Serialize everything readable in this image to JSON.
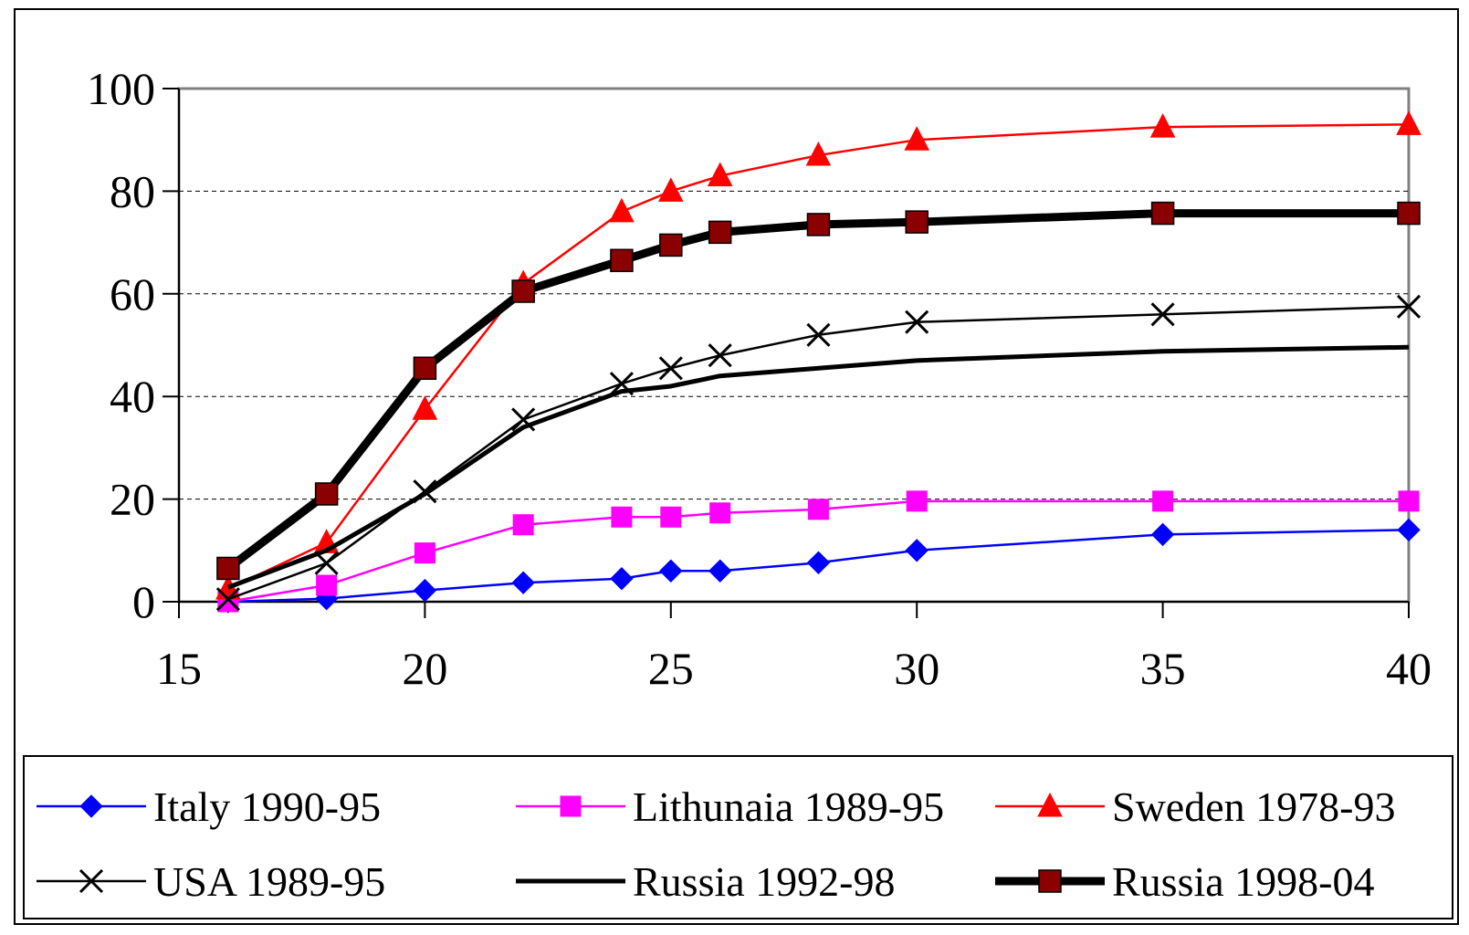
{
  "chart_data": {
    "type": "line",
    "title": "",
    "xlabel": "",
    "ylabel": "",
    "xlim": [
      15,
      40
    ],
    "ylim": [
      0,
      100
    ],
    "x_ticks": [
      15,
      20,
      25,
      30,
      35,
      40
    ],
    "y_ticks": [
      0,
      20,
      40,
      60,
      80,
      100
    ],
    "grid": "horizontal dashed",
    "legend_position": "bottom",
    "series": [
      {
        "name": "Italy 1990-95",
        "color": "#0000ff",
        "marker": "diamond",
        "line_weight": "thin",
        "x": [
          16,
          18,
          20,
          22,
          24,
          25,
          26,
          28,
          30,
          35,
          40
        ],
        "y": [
          0,
          0.6,
          2.2,
          3.7,
          4.5,
          6,
          6,
          7.6,
          10,
          13.1,
          14
        ]
      },
      {
        "name": "Lithunaia 1989-95",
        "color": "#ff00ff",
        "marker": "square",
        "line_weight": "thin",
        "x": [
          16,
          18,
          20,
          22,
          24,
          25,
          26,
          28,
          30,
          35,
          40
        ],
        "y": [
          0,
          3.2,
          9.5,
          15,
          16.5,
          16.5,
          17.3,
          18,
          19.6,
          19.6,
          19.6
        ]
      },
      {
        "name": "Sweden 1978-93",
        "color": "#ff0000",
        "marker": "triangle",
        "line_weight": "thin",
        "x": [
          16,
          18,
          20,
          22,
          24,
          25,
          26,
          28,
          30,
          35,
          40
        ],
        "y": [
          2.5,
          11.5,
          37.5,
          62,
          76,
          80,
          83,
          87,
          90,
          92.5,
          93
        ]
      },
      {
        "name": "USA 1989-95",
        "color": "#000000",
        "marker": "x",
        "line_weight": "thin",
        "x": [
          16,
          18,
          20,
          22,
          24,
          25,
          26,
          28,
          30,
          35,
          40
        ],
        "y": [
          0.5,
          7.5,
          21.5,
          35.5,
          42.5,
          45.5,
          48,
          52,
          54.5,
          56,
          57.5
        ]
      },
      {
        "name": "Russia 1992-98",
        "color": "#000000",
        "marker": "none",
        "line_weight": "medium",
        "x": [
          16,
          18,
          20,
          22,
          24,
          25,
          26,
          28,
          30,
          35,
          40
        ],
        "y": [
          2.8,
          10,
          21,
          34,
          41,
          42,
          44,
          45.5,
          47,
          48.8,
          49.6
        ]
      },
      {
        "name": "Russia 1998-04",
        "color": "#000000",
        "marker": "square-darkred",
        "marker_color": "#8b0000",
        "line_weight": "thick",
        "x": [
          16,
          18,
          20,
          22,
          24,
          25,
          26,
          28,
          30,
          35,
          40
        ],
        "y": [
          6.5,
          21,
          45.5,
          60.5,
          66.5,
          69.5,
          72,
          73.5,
          74,
          75.7,
          75.7
        ]
      }
    ]
  }
}
